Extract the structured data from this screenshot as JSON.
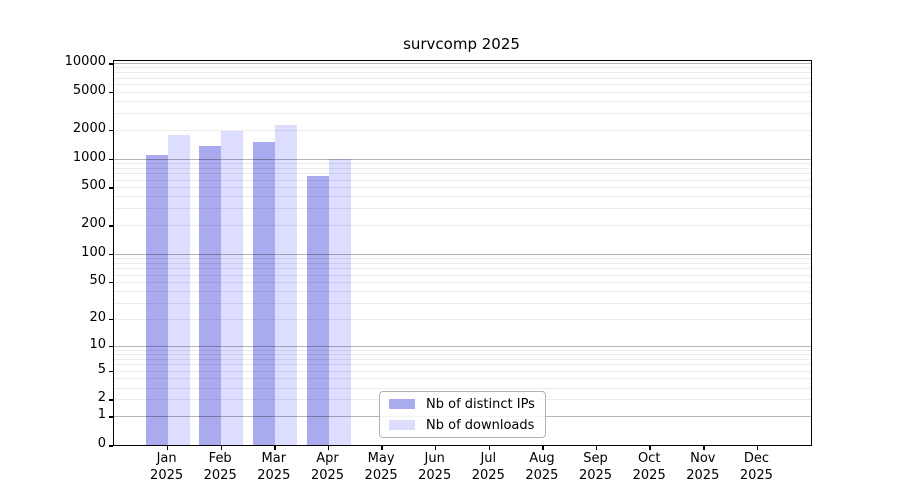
{
  "chart_data": {
    "type": "bar",
    "title": "survcomp 2025",
    "categories": [
      "Jan",
      "Feb",
      "Mar",
      "Apr",
      "May",
      "Jun",
      "Jul",
      "Aug",
      "Sep",
      "Oct",
      "Nov",
      "Dec"
    ],
    "xtick_year": "2025",
    "series": [
      {
        "name": "Nb of distinct IPs",
        "color": "#aaaaee",
        "values": [
          1080,
          1350,
          1490,
          650,
          null,
          null,
          null,
          null,
          null,
          null,
          null,
          null
        ]
      },
      {
        "name": "Nb of downloads",
        "color": "#ddddff",
        "values": [
          1750,
          1940,
          2220,
          1000,
          null,
          null,
          null,
          null,
          null,
          null,
          null,
          null
        ]
      }
    ],
    "xlabel": "",
    "ylabel": "",
    "yscale": "log10(1+x)",
    "ytick_values": [
      10000,
      5000,
      2000,
      1000,
      500,
      200,
      100,
      50,
      20,
      10,
      5,
      2,
      1,
      0
    ],
    "ylim": [
      0,
      10500
    ],
    "grid": true,
    "grid_major_color": "#b4b4b4",
    "grid_minor_color": "#ededed",
    "axis_color": "#000000",
    "legend_position": "lower center inside axes"
  }
}
